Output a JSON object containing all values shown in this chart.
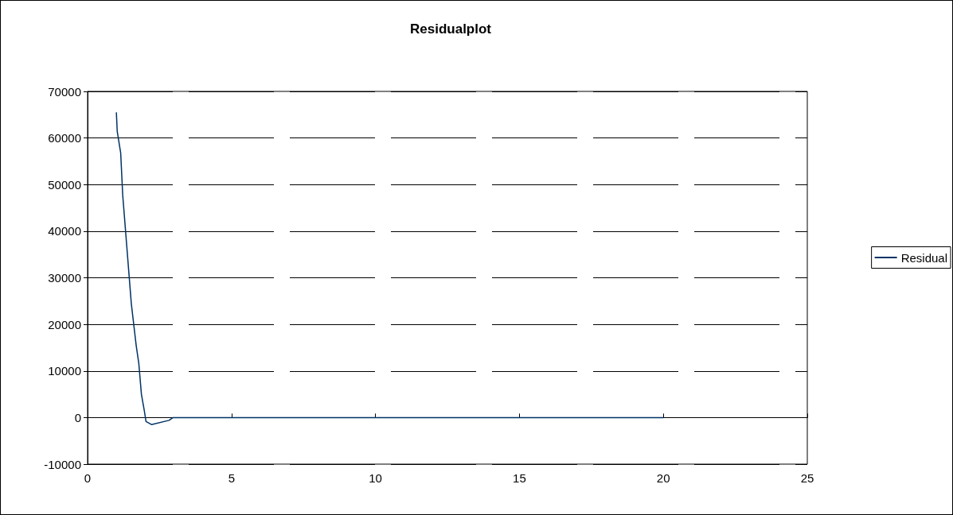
{
  "chart_data": {
    "type": "line",
    "title": "Residualplot",
    "x": [
      1.0,
      1.03,
      1.15,
      1.22,
      1.52,
      1.69,
      1.78,
      1.87,
      1.97,
      2.03,
      2.22,
      2.83,
      2.97,
      5,
      10,
      15,
      20
    ],
    "series": [
      {
        "name": "Residual",
        "color": "#003366",
        "values": [
          65500,
          61400,
          56800,
          47800,
          24400,
          15400,
          11600,
          5000,
          1500,
          -850,
          -1500,
          -600,
          0,
          0,
          0,
          0,
          0
        ]
      }
    ],
    "xlim": [
      0,
      25
    ],
    "xticks": [
      0,
      5,
      10,
      15,
      20,
      25
    ],
    "ylim": [
      -10000,
      70000
    ],
    "yticks": [
      -10000,
      0,
      10000,
      20000,
      30000,
      40000,
      50000,
      60000,
      70000
    ],
    "grid": "y",
    "legend": "right",
    "marker": "none",
    "line_style": "solid"
  }
}
